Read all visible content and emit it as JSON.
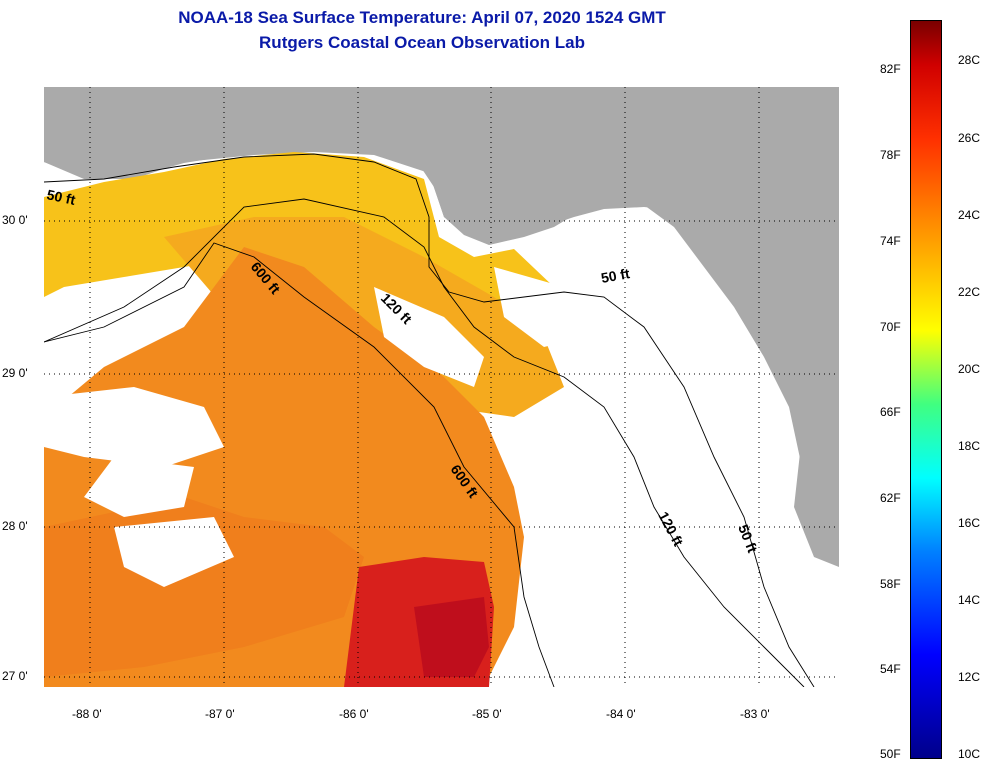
{
  "header": {
    "title": "NOAA-18 Sea Surface Temperature:  April 07, 2020 1524 GMT",
    "subtitle": "Rutgers Coastal Ocean Observation Lab"
  },
  "map": {
    "lon_labels": [
      "-88 0'",
      "-87 0'",
      "-86 0'",
      "-85 0'",
      "-84 0'",
      "-83 0'"
    ],
    "lat_labels": [
      "30 0'",
      "29 0'",
      "28 0'",
      "27 0'"
    ],
    "contour_labels": {
      "fifty_west": "50 ft",
      "six_hundred_north": "600 ft",
      "one_twenty_north": "120 ft",
      "fifty_east_north": "50 ft",
      "six_hundred_south": "600 ft",
      "one_twenty_south": "120 ft",
      "fifty_east_south": "50 ft"
    }
  },
  "colorbar": {
    "fahrenheit": [
      "82F",
      "78F",
      "74F",
      "70F",
      "66F",
      "62F",
      "58F",
      "54F",
      "50F"
    ],
    "celsius": [
      "28C",
      "26C",
      "24C",
      "22C",
      "20C",
      "18C",
      "16C",
      "14C",
      "12C",
      "10C"
    ],
    "colors": {
      "warm_orange": "#f59a1c",
      "hot_red": "#d0101c",
      "land_gray": "#aaaaaa"
    }
  }
}
